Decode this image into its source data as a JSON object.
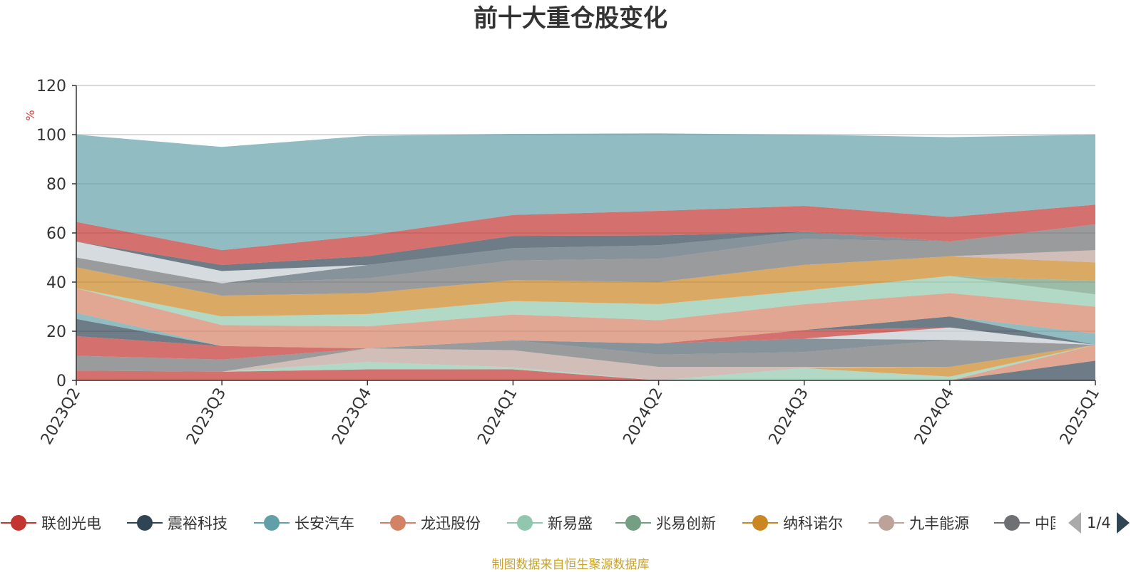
{
  "chart_data": {
    "type": "area",
    "title": "前十大重仓股变化",
    "ylabel": "%",
    "ylim": [
      0,
      120
    ],
    "yticks": [
      0,
      20,
      40,
      60,
      80,
      100,
      120
    ],
    "grid": true,
    "categories": [
      "2023Q2",
      "2023Q3",
      "2023Q4",
      "2024Q1",
      "2024Q2",
      "2024Q3",
      "2024Q4",
      "2025Q1"
    ],
    "bands": [
      {
        "color": "#c23531",
        "values": [
          4.0,
          3.5,
          4.5,
          4.5,
          0.0,
          0.0,
          0.0,
          0.0
        ]
      },
      {
        "color": "#2f4554",
        "values": [
          0.0,
          0.0,
          0.0,
          0.0,
          0.0,
          0.0,
          0.0,
          8.0
        ]
      },
      {
        "color": "#d48265",
        "values": [
          0.0,
          0.0,
          0.0,
          0.0,
          0.0,
          0.0,
          0.0,
          6.5
        ]
      },
      {
        "color": "#91c7ae",
        "values": [
          0.0,
          0.0,
          3.0,
          0.8,
          0.0,
          5.0,
          1.5,
          0.0
        ]
      },
      {
        "color": "#ca8622",
        "values": [
          0.0,
          0.0,
          0.0,
          0.0,
          0.0,
          0.0,
          4.0,
          0.0
        ]
      },
      {
        "color": "#bda29a",
        "values": [
          0.0,
          0.0,
          5.5,
          7.0,
          5.5,
          0.5,
          0.0,
          0.0
        ]
      },
      {
        "color": "#6e7074",
        "values": [
          6.0,
          5.0,
          0.0,
          4.0,
          5.0,
          6.0,
          11.0,
          0.0
        ]
      },
      {
        "color": "#546570",
        "values": [
          0.0,
          0.0,
          0.0,
          0.0,
          4.5,
          5.5,
          0.0,
          0.0
        ]
      },
      {
        "color": "#c4ccd3",
        "values": [
          0.0,
          0.0,
          0.0,
          0.0,
          0.0,
          0.0,
          5.0,
          0.0
        ]
      },
      {
        "color": "#c23531",
        "values": [
          8.0,
          5.5,
          0.0,
          0.0,
          0.0,
          3.5,
          0.0,
          0.0
        ]
      },
      {
        "color": "#2f4554",
        "values": [
          7.0,
          0.0,
          0.0,
          0.0,
          0.0,
          0.0,
          4.5,
          0.0
        ]
      },
      {
        "color": "#61a0a8",
        "values": [
          2.5,
          0.0,
          0.0,
          0.0,
          0.0,
          0.0,
          0.0,
          4.5
        ]
      },
      {
        "color": "#d48265",
        "values": [
          10.0,
          8.5,
          9.0,
          10.5,
          9.5,
          10.5,
          9.5,
          11.0
        ]
      },
      {
        "color": "#91c7ae",
        "values": [
          0.0,
          3.5,
          5.0,
          5.5,
          6.5,
          5.5,
          7.0,
          5.0
        ]
      },
      {
        "color": "#749f83",
        "values": [
          0.0,
          0.0,
          0.0,
          0.0,
          0.0,
          0.0,
          0.0,
          5.5
        ]
      },
      {
        "color": "#ca8622",
        "values": [
          8.5,
          8.5,
          8.5,
          8.5,
          9.0,
          10.5,
          8.0,
          7.5
        ]
      },
      {
        "color": "#bda29a",
        "values": [
          0.0,
          0.0,
          0.0,
          0.0,
          0.0,
          0.0,
          0.0,
          5.0
        ]
      },
      {
        "color": "#6e7074",
        "values": [
          4.0,
          5.0,
          6.0,
          8.0,
          9.5,
          10.5,
          6.0,
          10.5
        ]
      },
      {
        "color": "#546570",
        "values": [
          0.0,
          0.0,
          5.5,
          5.0,
          5.5,
          3.0,
          0.0,
          0.0
        ]
      },
      {
        "color": "#c4ccd3",
        "values": [
          6.5,
          5.0,
          0.0,
          0.0,
          0.0,
          0.0,
          0.0,
          0.0
        ]
      },
      {
        "color": "#2f4554",
        "values": [
          0.0,
          2.5,
          3.5,
          5.0,
          4.0,
          0.0,
          0.0,
          0.0
        ]
      },
      {
        "color": "#c23531",
        "values": [
          8.0,
          6.0,
          8.5,
          8.5,
          10.0,
          10.5,
          10.0,
          8.0
        ]
      },
      {
        "color": "#2f4554",
        "values": [
          0.0,
          0.0,
          0.0,
          0.0,
          0.0,
          0.0,
          0.0,
          0.0
        ]
      },
      {
        "color": "#61a0a8",
        "values": [
          35.5,
          42.0,
          40.5,
          33.0,
          31.5,
          29.0,
          32.5,
          28.5
        ]
      }
    ]
  },
  "legend": {
    "items": [
      {
        "label": "联创光电",
        "color": "#c23531"
      },
      {
        "label": "震裕科技",
        "color": "#2f4554"
      },
      {
        "label": "长安汽车",
        "color": "#61a0a8"
      },
      {
        "label": "龙迅股份",
        "color": "#d48265"
      },
      {
        "label": "新易盛",
        "color": "#91c7ae"
      },
      {
        "label": "兆易创新",
        "color": "#749f83"
      },
      {
        "label": "纳科诺尔",
        "color": "#ca8622"
      },
      {
        "label": "九丰能源",
        "color": "#bda29a"
      },
      {
        "label": "中国",
        "color": "#6e7074"
      }
    ],
    "page": "1/4"
  },
  "source": "制图数据来自恒生聚源数据库"
}
